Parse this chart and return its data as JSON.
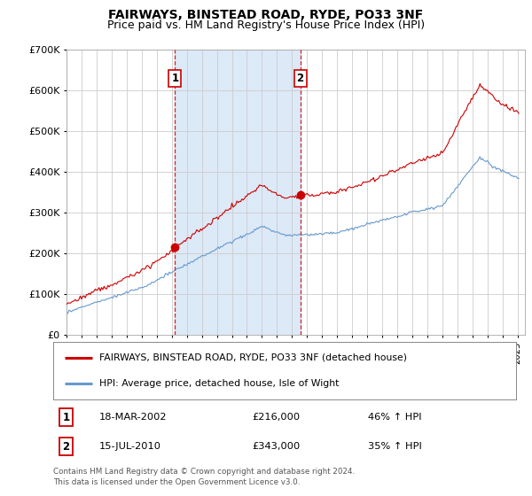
{
  "title": "FAIRWAYS, BINSTEAD ROAD, RYDE, PO33 3NF",
  "subtitle": "Price paid vs. HM Land Registry's House Price Index (HPI)",
  "legend_label_red": "FAIRWAYS, BINSTEAD ROAD, RYDE, PO33 3NF (detached house)",
  "legend_label_blue": "HPI: Average price, detached house, Isle of Wight",
  "sale1_year": 2002.21,
  "sale1_text": "18-MAR-2002",
  "sale1_pct": "46% ↑ HPI",
  "sale2_year": 2010.54,
  "sale2_text": "15-JUL-2010",
  "sale2_pct": "35% ↑ HPI",
  "footnote1": "Contains HM Land Registry data © Crown copyright and database right 2024.",
  "footnote2": "This data is licensed under the Open Government Licence v3.0.",
  "ylim": [
    0,
    700000
  ],
  "xlim_start": 1995.0,
  "xlim_end": 2025.5,
  "plot_bg": "#ffffff",
  "shade_color": "#dce9f7",
  "line_red": "#cc0000",
  "line_blue": "#6699cc",
  "grid_color": "#cccccc",
  "title_fontsize": 10,
  "subtitle_fontsize": 9
}
